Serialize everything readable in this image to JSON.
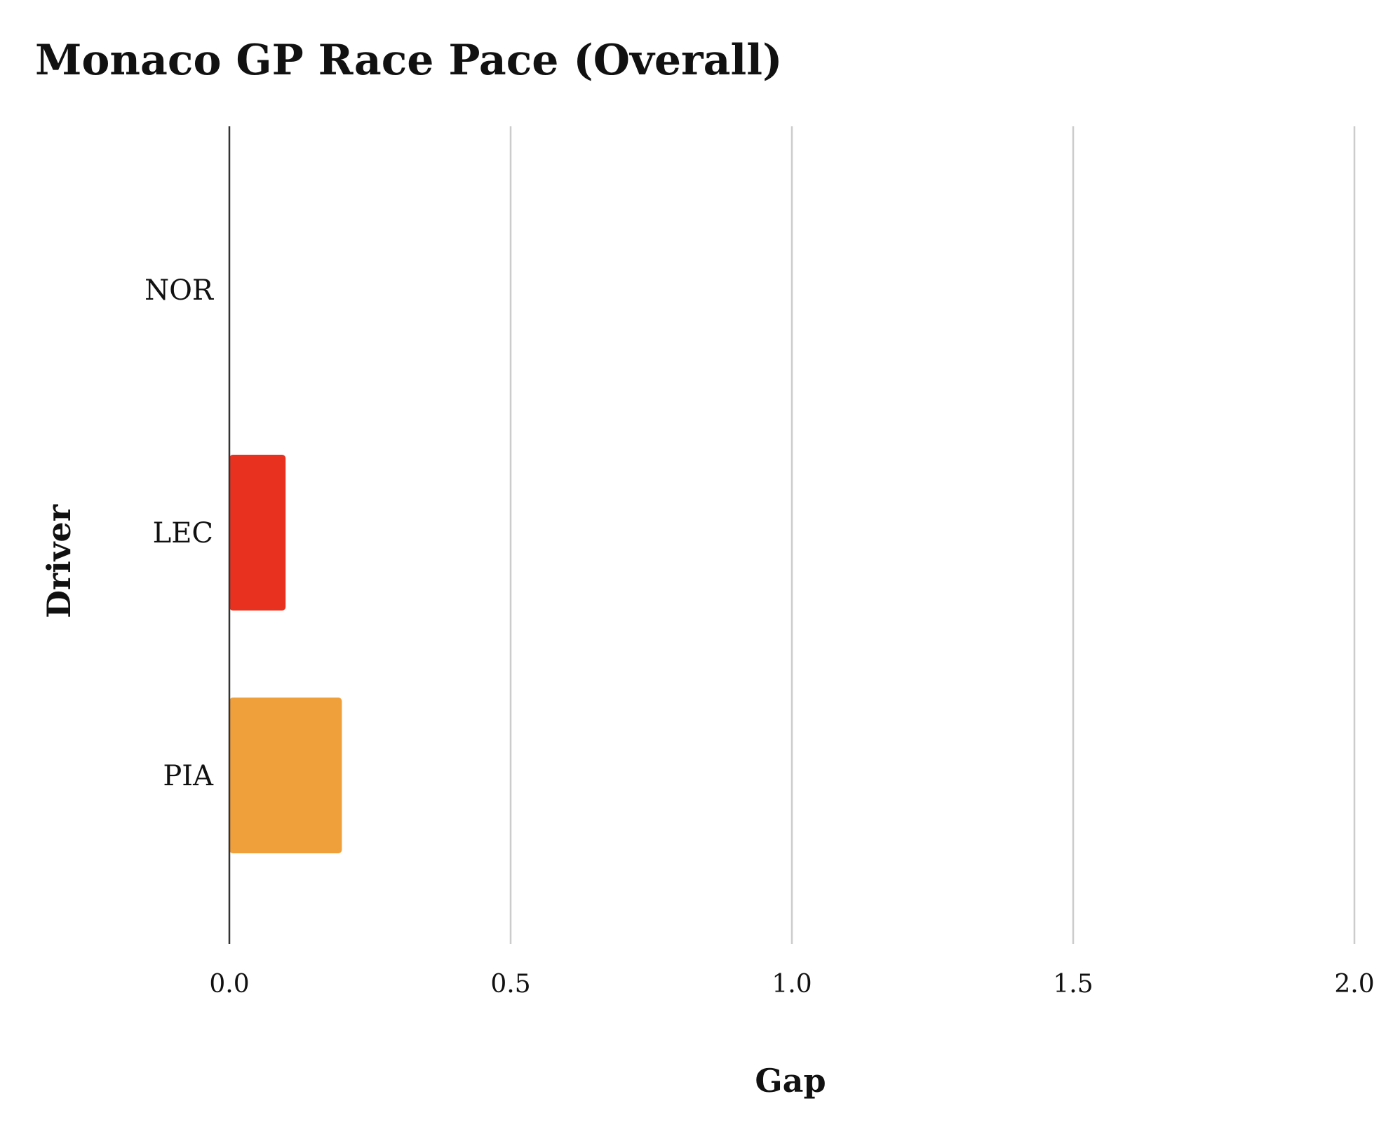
{
  "chart_data": {
    "type": "bar",
    "orientation": "horizontal",
    "title": "Monaco GP Race Pace (Overall)",
    "xlabel": "Gap",
    "ylabel": "Driver",
    "categories": [
      "NOR",
      "LEC",
      "PIA"
    ],
    "values": [
      0.0,
      0.1,
      0.2
    ],
    "colors": [
      "#ff8000",
      "#e8321f",
      "#f0a03a"
    ],
    "xlim": [
      0,
      2
    ],
    "xticks": [
      0.0,
      0.5,
      1.0,
      1.5,
      2.0
    ],
    "xtick_labels": [
      "0.0",
      "0.5",
      "1.0",
      "1.5",
      "2.0"
    ],
    "grid": "vertical",
    "legend": "none"
  }
}
